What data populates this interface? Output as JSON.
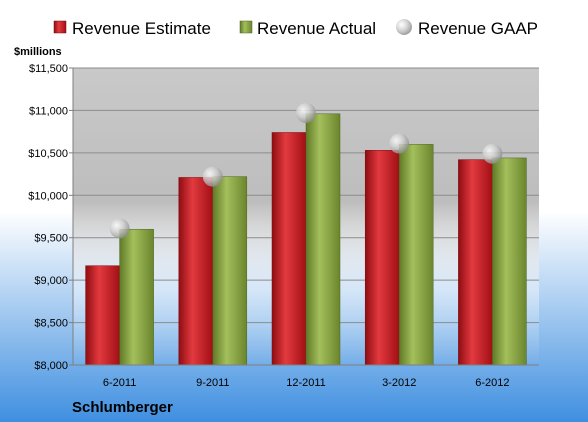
{
  "company": "Schlumberger",
  "unit_label": "$millions",
  "chart_data": {
    "type": "bar",
    "categories": [
      "6-2011",
      "9-2011",
      "12-2011",
      "3-2012",
      "6-2012"
    ],
    "series": [
      {
        "name": "Revenue Estimate",
        "kind": "bar",
        "color": "#c0151c",
        "values": [
          9170,
          10210,
          10740,
          10530,
          10420
        ]
      },
      {
        "name": "Revenue Actual",
        "kind": "bar",
        "color": "#7f9a3c",
        "values": [
          9600,
          10220,
          10960,
          10600,
          10440
        ]
      },
      {
        "name": "Revenue GAAP",
        "kind": "marker",
        "color": "#b8b8b8",
        "values": [
          9610,
          10220,
          10970,
          10610,
          10490
        ]
      }
    ],
    "yticks": [
      "$8,000",
      "$8,500",
      "$9,000",
      "$9,500",
      "$10,000",
      "$10,500",
      "$11,000",
      "$11,500"
    ],
    "ylim": [
      8000,
      11500
    ],
    "grid": true,
    "legend_position": "top"
  }
}
